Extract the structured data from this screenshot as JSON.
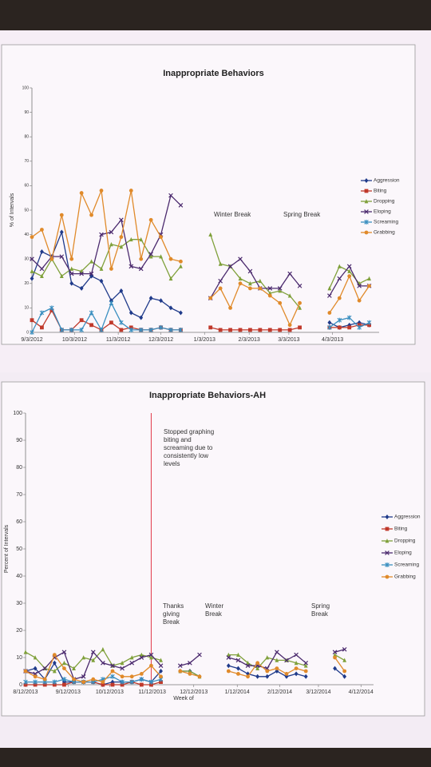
{
  "chart_data": [
    {
      "type": "line",
      "title": "Inappropriate Behaviors",
      "y_label": "% of Intervals",
      "x": [
        0,
        1,
        2,
        3,
        4,
        5,
        6,
        7,
        8,
        9,
        10,
        11,
        12,
        13,
        14,
        15,
        16,
        17,
        18,
        19,
        20,
        21,
        22,
        23,
        24,
        25,
        26,
        27,
        28,
        29,
        30,
        31,
        32,
        33,
        34
      ],
      "xlim": [
        0,
        35
      ],
      "xticks": [
        {
          "value": 0,
          "label": "9/3/2012"
        },
        {
          "value": 4.3,
          "label": "10/3/2012"
        },
        {
          "value": 8.7,
          "label": "11/3/2012"
        },
        {
          "value": 13,
          "label": "12/3/2012"
        },
        {
          "value": 17.4,
          "label": "1/3/2013"
        },
        {
          "value": 21.9,
          "label": "2/3/2013"
        },
        {
          "value": 25.9,
          "label": "3/3/2013"
        },
        {
          "value": 30.3,
          "label": "4/3/2013"
        }
      ],
      "ylim": [
        0,
        100
      ],
      "yticks": [
        0,
        10,
        20,
        30,
        40,
        50,
        60,
        70,
        80,
        90,
        100
      ],
      "annotations": [
        "Winter Break",
        "Spring Break"
      ],
      "legend": "right",
      "series": [
        {
          "name": "Aggression",
          "color": "#1f3a8a",
          "marker": "diamond",
          "values": [
            22,
            33,
            31,
            41,
            20,
            18,
            23,
            21,
            13,
            17,
            8,
            6,
            14,
            13,
            10,
            8,
            null,
            null,
            null,
            null,
            null,
            null,
            null,
            null,
            null,
            null,
            null,
            null,
            null,
            null,
            4,
            2,
            3,
            4,
            3
          ]
        },
        {
          "name": "Biting",
          "color": "#c0392b",
          "marker": "square",
          "values": [
            5,
            2,
            9,
            1,
            1,
            5,
            3,
            1,
            4,
            1,
            2,
            1,
            1,
            2,
            1,
            1,
            null,
            null,
            2,
            1,
            1,
            1,
            1,
            1,
            1,
            1,
            1,
            2,
            null,
            null,
            2,
            2,
            2,
            3,
            3
          ]
        },
        {
          "name": "Dropping",
          "color": "#7fa03a",
          "marker": "triangle",
          "values": [
            25,
            23,
            30,
            23,
            26,
            25,
            29,
            26,
            36,
            35,
            38,
            38,
            31,
            31,
            22,
            27,
            null,
            null,
            40,
            28,
            27,
            22,
            20,
            21,
            16,
            17,
            15,
            10,
            null,
            null,
            18,
            27,
            25,
            20,
            22
          ]
        },
        {
          "name": "Eloping",
          "color": "#4b2a6e",
          "marker": "x",
          "values": [
            30,
            26,
            31,
            31,
            24,
            24,
            24,
            40,
            41,
            46,
            27,
            26,
            32,
            40,
            56,
            52,
            null,
            null,
            14,
            21,
            27,
            30,
            25,
            18,
            18,
            18,
            24,
            19,
            null,
            null,
            15,
            22,
            27,
            19,
            19
          ]
        },
        {
          "name": "Screaming",
          "color": "#3a8fc0",
          "marker": "star",
          "values": [
            0,
            8,
            10,
            1,
            1,
            1,
            8,
            1,
            12,
            4,
            1,
            1,
            1,
            2,
            1,
            1,
            null,
            null,
            null,
            null,
            null,
            null,
            null,
            null,
            null,
            null,
            null,
            null,
            null,
            null,
            2,
            5,
            6,
            2,
            4
          ]
        },
        {
          "name": "Grabbing",
          "color": "#e08a2a",
          "marker": "circle",
          "values": [
            39,
            42,
            30,
            48,
            30,
            57,
            48,
            58,
            26,
            39,
            58,
            30,
            46,
            39,
            30,
            29,
            null,
            null,
            14,
            18,
            10,
            20,
            18,
            18,
            15,
            12,
            3,
            12,
            null,
            null,
            8,
            14,
            23,
            13,
            19
          ]
        }
      ]
    },
    {
      "type": "line",
      "title": "Inappropriate Behaviors-AH",
      "y_label": "Percent of Intervals",
      "x_label": "Week of",
      "x": [
        0,
        1,
        2,
        3,
        4,
        5,
        6,
        7,
        8,
        9,
        10,
        11,
        12,
        13,
        14,
        15,
        16,
        17,
        18,
        19,
        20,
        21,
        22,
        23,
        24,
        25,
        26,
        27,
        28,
        29,
        30,
        31,
        32,
        33
      ],
      "xlim": [
        0,
        36
      ],
      "xticks": [
        {
          "value": 0,
          "label": "8/12/2013"
        },
        {
          "value": 4.4,
          "label": "9/12/2013"
        },
        {
          "value": 8.7,
          "label": "10/12/2013"
        },
        {
          "value": 13.1,
          "label": "11/12/2013"
        },
        {
          "value": 17.4,
          "label": "12/12/2013"
        },
        {
          "value": 21.9,
          "label": "1/12/2014"
        },
        {
          "value": 26.3,
          "label": "2/12/2014"
        },
        {
          "value": 30.3,
          "label": "3/12/2014"
        },
        {
          "value": 34.7,
          "label": "4/12/2014"
        }
      ],
      "ylim": [
        0,
        100
      ],
      "yticks": [
        0,
        10,
        20,
        30,
        40,
        50,
        60,
        70,
        80,
        90,
        100
      ],
      "divider": {
        "x": 13,
        "color": "#e03a4a"
      },
      "annotations": [
        "Stopped graphing biting and screaming due to consistently low levels",
        "Thanks giving Break",
        "Winter Break",
        "Spring Break"
      ],
      "legend": "right",
      "series": [
        {
          "name": "Aggression",
          "color": "#1f3a8a",
          "marker": "diamond",
          "values": [
            5,
            6,
            2,
            8,
            1,
            1,
            1,
            1,
            0,
            1,
            1,
            1,
            2,
            1,
            5,
            null,
            5,
            5,
            3,
            null,
            null,
            7,
            6,
            4,
            3,
            3,
            5,
            3,
            4,
            3,
            null,
            null,
            6,
            3
          ]
        },
        {
          "name": "Biting",
          "color": "#c0392b",
          "marker": "square",
          "values": [
            0,
            0,
            0,
            0,
            0,
            1,
            1,
            1,
            0,
            0,
            0,
            1,
            0,
            0,
            1,
            null,
            null,
            null,
            null,
            null,
            null,
            null,
            null,
            null,
            null,
            null,
            null,
            null,
            null,
            null,
            null,
            null,
            null,
            null
          ]
        },
        {
          "name": "Dropping",
          "color": "#7fa03a",
          "marker": "triangle",
          "values": [
            12,
            10,
            6,
            5,
            8,
            6,
            10,
            9,
            13,
            7,
            8,
            10,
            11,
            10,
            9,
            null,
            5,
            5,
            3,
            null,
            null,
            11,
            11,
            8,
            6,
            10,
            9,
            9,
            8,
            7,
            null,
            null,
            11,
            9
          ]
        },
        {
          "name": "Eloping",
          "color": "#4b2a6e",
          "marker": "x",
          "values": [
            5,
            4,
            6,
            10,
            12,
            2,
            3,
            12,
            8,
            7,
            6,
            8,
            10,
            11,
            7,
            null,
            7,
            8,
            11,
            null,
            null,
            10,
            9,
            7,
            7,
            6,
            12,
            9,
            11,
            8,
            null,
            null,
            12,
            13
          ]
        },
        {
          "name": "Screaming",
          "color": "#3a8fc0",
          "marker": "star",
          "values": [
            1,
            1,
            1,
            1,
            2,
            1,
            1,
            1,
            2,
            3,
            1,
            1,
            2,
            1,
            2,
            null,
            null,
            null,
            null,
            null,
            null,
            null,
            null,
            null,
            null,
            null,
            null,
            null,
            null,
            null,
            null,
            null,
            null,
            null
          ]
        },
        {
          "name": "Grabbing",
          "color": "#e08a2a",
          "marker": "circle",
          "values": [
            5,
            3,
            2,
            11,
            6,
            2,
            1,
            2,
            1,
            5,
            3,
            3,
            4,
            7,
            3,
            null,
            5,
            4,
            3,
            null,
            null,
            5,
            4,
            3,
            8,
            5,
            6,
            4,
            6,
            5,
            null,
            null,
            10,
            5
          ]
        }
      ]
    }
  ]
}
